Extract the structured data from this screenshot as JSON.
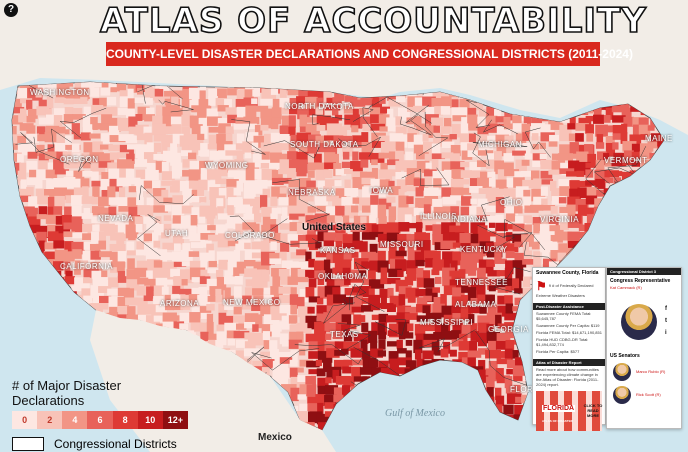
{
  "header": {
    "help_label": "?",
    "title": "ATLAS OF ACCOUNTABILITY",
    "subtitle": "COUNTY-LEVEL DISASTER DECLARATIONS AND CONGRESSIONAL DISTRICTS (2011-2024)"
  },
  "colors": {
    "water": "#cfe6ef",
    "land": "#f3eee8",
    "scale": [
      "#fde7e2",
      "#f8c3b8",
      "#f29585",
      "#e8625a",
      "#de3a35",
      "#c71d1f",
      "#8f0f12"
    ],
    "accent": "#d9281e"
  },
  "legend": {
    "title": "# of Major Disaster Declarations",
    "ticks": [
      "0",
      "2",
      "4",
      "6",
      "8",
      "10",
      "12+"
    ],
    "districts_label": "Congressional Districts"
  },
  "map_labels": {
    "country": "United States",
    "mexico": "Mexico",
    "gulf": "Gulf of Mexico",
    "states": [
      "WASHINGTON",
      "OREGON",
      "NEVADA",
      "CALIFORNIA",
      "ARIZONA",
      "UTAH",
      "COLORADO",
      "WYOMING",
      "NEW MEXICO",
      "NORTH DAKOTA",
      "SOUTH DAKOTA",
      "NEBRASKA",
      "KANSAS",
      "OKLAHOMA",
      "TEXAS",
      "MISSOURI",
      "IOWA",
      "ILLINOIS",
      "INDIANA",
      "MICHIGAN",
      "OHIO",
      "KENTUCKY",
      "TENNESSEE",
      "MISSISSIPPI",
      "ALABAMA",
      "GEORGIA",
      "FLORIDA",
      "VIRGINIA",
      "MAINE",
      "VERMONT"
    ]
  },
  "county_popup": {
    "county": "Suwannee County, Florida",
    "declared_line": "9 # of Federally Declared Extreme Weather Disasters",
    "fema_header": "Post-Disaster Assistance",
    "fema_lines": [
      "Suwannee County FEMA Total: $5,645,787",
      "Suwannee County Per Capita: $119",
      "Florida FEMA Total: $14,671,190,851",
      "Florida HUD CDBG-DR Total: $1,494,832,774",
      "Florida Per Capita: $577"
    ],
    "report_header": "Atlas of Disaster Report",
    "report_text": "Read more about how communities are experiencing climate change in the Atlas of Disaster: Florida (2011-2024) report.",
    "report_badge": "FLORIDA",
    "report_caption": "ATLAS OF DISASTER",
    "click_label": "CLICK TO READ MORE"
  },
  "district_popup": {
    "district": "Congressional District 3",
    "rep_header": "Congress Representative",
    "rep_name": "Kat Cammack (R)",
    "senators_header": "US Senators",
    "senators": [
      "Marco Rubio (R)",
      "Rick Scott (R)"
    ],
    "social": [
      "f",
      "t",
      "i"
    ]
  }
}
